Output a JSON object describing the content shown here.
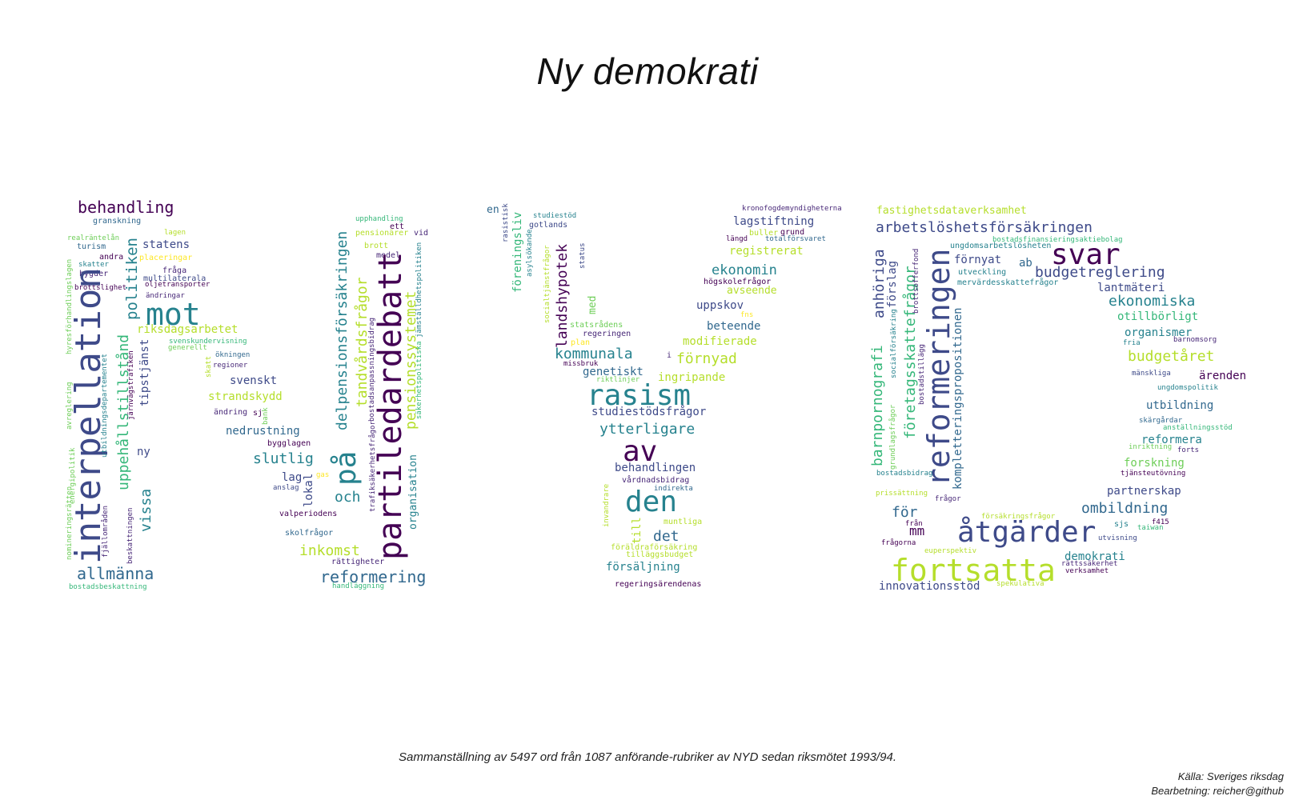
{
  "title": "Ny demokrati",
  "caption": "Sammanställning av 5497 ord från 1087 anförande-rubriker av NYD sedan riksmötet 1993/94.",
  "source_line1": "Källa: Sveriges riksdag",
  "source_line2": "Bearbetning: reicher@github",
  "words": [
    [
      "behandling",
      "#440154"
    ],
    [
      "granskning",
      "#31688e"
    ],
    [
      "lagen",
      "#b5de2b"
    ],
    [
      "realräntelån",
      "#6ece58"
    ],
    [
      "turism",
      "#31688e"
    ],
    [
      "statens",
      "#3e4a89"
    ],
    [
      "andra",
      "#440154"
    ],
    [
      "placeringar",
      "#fde725"
    ],
    [
      "skatter",
      "#26828e"
    ],
    [
      "fråga",
      "#482878"
    ],
    [
      "bygder",
      "#482878"
    ],
    [
      "multilaterala",
      "#3e4a89"
    ],
    [
      "oljetransporter",
      "#440154"
    ],
    [
      "brottslighet",
      "#440154"
    ],
    [
      "ändringar",
      "#482878"
    ],
    [
      "mot",
      "#26828e"
    ],
    [
      "riksdagsarbetet",
      "#b5de2b"
    ],
    [
      "svenskundervisning",
      "#35b779"
    ],
    [
      "generellt",
      "#6ece58"
    ],
    [
      "ökningen",
      "#31688e"
    ],
    [
      "regioner",
      "#482878"
    ],
    [
      "svenskt",
      "#3e4a89"
    ],
    [
      "strandskydd",
      "#b5de2b"
    ],
    [
      "ändring",
      "#482878"
    ],
    [
      "sj",
      "#440154"
    ],
    [
      "nedrustning",
      "#31688e"
    ],
    [
      "slutlig",
      "#26828e"
    ],
    [
      "bygglagen",
      "#440154"
    ],
    [
      "lag",
      "#3e4a89"
    ],
    [
      "anslag",
      "#3e4a89"
    ],
    [
      "gas",
      "#fde725"
    ],
    [
      "valperiodens",
      "#440154"
    ],
    [
      "och",
      "#26828e"
    ],
    [
      "skolfrågor",
      "#31688e"
    ],
    [
      "inkomst",
      "#b5de2b"
    ],
    [
      "rättigheter",
      "#482878"
    ],
    [
      "reformering",
      "#31688e"
    ],
    [
      "handläggning",
      "#35b779"
    ],
    [
      "allmänna",
      "#31688e"
    ],
    [
      "bostadsbeskattning",
      "#35b779"
    ],
    [
      "ny",
      "#3e4a89"
    ],
    [
      "upphandling",
      "#35b779"
    ],
    [
      "ett",
      "#440154"
    ],
    [
      "pensionärer",
      "#b5de2b"
    ],
    [
      "vid",
      "#482878"
    ],
    [
      "brott",
      "#b5de2b"
    ],
    [
      "medel",
      "#482878"
    ],
    [
      "en",
      "#31688e"
    ],
    [
      "studiestöd",
      "#26828e"
    ],
    [
      "gotlands",
      "#3e4a89"
    ],
    [
      "kronofogdemyndigheterna",
      "#482878"
    ],
    [
      "lagstiftning",
      "#3e4a89"
    ],
    [
      "buller",
      "#b5de2b"
    ],
    [
      "grund",
      "#440154"
    ],
    [
      "längd",
      "#440154"
    ],
    [
      "totalförsvaret",
      "#31688e"
    ],
    [
      "registrerat",
      "#b5de2b"
    ],
    [
      "ekonomin",
      "#26828e"
    ],
    [
      "högskolefrågor",
      "#440154"
    ],
    [
      "avseende",
      "#b5de2b"
    ],
    [
      "uppskov",
      "#3e4a89"
    ],
    [
      "fns",
      "#fde725"
    ],
    [
      "beteende",
      "#31688e"
    ],
    [
      "statsrådens",
      "#6ece58"
    ],
    [
      "regeringen",
      "#482878"
    ],
    [
      "plan",
      "#fde725"
    ],
    [
      "modifierade",
      "#b5de2b"
    ],
    [
      "kommunala",
      "#26828e"
    ],
    [
      "i",
      "#482878"
    ],
    [
      "förnyad",
      "#b5de2b"
    ],
    [
      "missbruk",
      "#440154"
    ],
    [
      "genetiskt",
      "#31688e"
    ],
    [
      "riktlinjer",
      "#6ece58"
    ],
    [
      "ingripande",
      "#b5de2b"
    ],
    [
      "rasism",
      "#26828e"
    ],
    [
      "studiestödsfrågor",
      "#3e4a89"
    ],
    [
      "ytterligare",
      "#26828e"
    ],
    [
      "av",
      "#440154"
    ],
    [
      "behandlingen",
      "#3e4a89"
    ],
    [
      "vårdnadsbidrag",
      "#482878"
    ],
    [
      "indirekta",
      "#31688e"
    ],
    [
      "den",
      "#26828e"
    ],
    [
      "muntliga",
      "#b5de2b"
    ],
    [
      "det",
      "#31688e"
    ],
    [
      "föräldraförsäkring",
      "#b5de2b"
    ],
    [
      "tilläggsbudget",
      "#b5de2b"
    ],
    [
      "försäljning",
      "#26828e"
    ],
    [
      "regeringsärendenas",
      "#440154"
    ],
    [
      "fastighetsdataverksamhet",
      "#b5de2b"
    ],
    [
      "arbetslöshetsförsäkringen",
      "#3e4a89"
    ],
    [
      "ungdomsarbetslösheten",
      "#26828e"
    ],
    [
      "bostadsfinansieringsaktiebolag",
      "#35b779"
    ],
    [
      "svar",
      "#440154"
    ],
    [
      "förnyat",
      "#3e4a89"
    ],
    [
      "ab",
      "#31688e"
    ],
    [
      "utveckling",
      "#26828e"
    ],
    [
      "budgetreglering",
      "#3e4a89"
    ],
    [
      "mervärdesskattefrågor",
      "#26828e"
    ],
    [
      "lantmäteri",
      "#3e4a89"
    ],
    [
      "ekonomiska",
      "#26828e"
    ],
    [
      "otillbörligt",
      "#35b779"
    ],
    [
      "organismer",
      "#26828e"
    ],
    [
      "fria",
      "#26828e"
    ],
    [
      "barnomsorg",
      "#482878"
    ],
    [
      "budgetåret",
      "#b5de2b"
    ],
    [
      "mänskliga",
      "#3e4a89"
    ],
    [
      "ärenden",
      "#440154"
    ],
    [
      "ungdomspolitik",
      "#26828e"
    ],
    [
      "utbildning",
      "#31688e"
    ],
    [
      "skärgårdar",
      "#31688e"
    ],
    [
      "anställningsstöd",
      "#35b779"
    ],
    [
      "reformera",
      "#26828e"
    ],
    [
      "inriktning",
      "#6ece58"
    ],
    [
      "forts",
      "#482878"
    ],
    [
      "forskning",
      "#6ece58"
    ],
    [
      "tjänsteutövning",
      "#440154"
    ],
    [
      "partnerskap",
      "#3e4a89"
    ],
    [
      "ombildning",
      "#31688e"
    ],
    [
      "f415",
      "#440154"
    ],
    [
      "sjs",
      "#26828e"
    ],
    [
      "taiwan",
      "#35b779"
    ],
    [
      "utvisning",
      "#3e4a89"
    ],
    [
      "åtgärder",
      "#3e4a89"
    ],
    [
      "för",
      "#31688e"
    ],
    [
      "mm",
      "#440154"
    ],
    [
      "från",
      "#440154"
    ],
    [
      "frågorna",
      "#440154"
    ],
    [
      "försäkringsfrågor",
      "#b5de2b"
    ],
    [
      "fortsatta",
      "#b5de2b"
    ],
    [
      "euperspektiv",
      "#b5de2b"
    ],
    [
      "demokrati",
      "#26828e"
    ],
    [
      "rättssäkerhet",
      "#482878"
    ],
    [
      "verksamhet",
      "#440154"
    ],
    [
      "innovationsstöd",
      "#3e4a89"
    ],
    [
      "spekulativa",
      "#b5de2b"
    ],
    [
      "prissättning",
      "#b5de2b"
    ],
    [
      "frågor",
      "#482878"
    ],
    [
      "bostadsbidrag",
      "#26828e"
    ],
    [
      "interpellation",
      "#3e4a89"
    ],
    [
      "uppehållstillstånd",
      "#35b779"
    ],
    [
      "politiken",
      "#26828e"
    ],
    [
      "tipstjänst",
      "#3e4a89"
    ],
    [
      "vissa",
      "#26828e"
    ],
    [
      "utbildningsdepartementet",
      "#26828e"
    ],
    [
      "järnvägstrafiken",
      "#440154"
    ],
    [
      "beskattningen",
      "#482878"
    ],
    [
      "fjällområden",
      "#482878"
    ],
    [
      "hyresförhandlingslagen",
      "#6ece58"
    ],
    [
      "avreglering",
      "#6ece58"
    ],
    [
      "energipolitik",
      "#6ece58"
    ],
    [
      "nomineringsrätten",
      "#6ece58"
    ],
    [
      "skatt",
      "#b5de2b"
    ],
    [
      "bank",
      "#6ece58"
    ],
    [
      "lokal",
      "#3e4a89"
    ],
    [
      "delpensionsförsäkringen",
      "#26828e"
    ],
    [
      "tandvårdsfrågor",
      "#b5de2b"
    ],
    [
      "på",
      "#26828e"
    ],
    [
      "partiledardebatt",
      "#440154"
    ],
    [
      "pensionssystemet",
      "#b5de2b"
    ],
    [
      "organisation",
      "#26828e"
    ],
    [
      "trafiksäkerhetsfrågor",
      "#482878"
    ],
    [
      "bostadsanpassningsbidrag",
      "#482878"
    ],
    [
      "jämställdhetspolitiken",
      "#26828e"
    ],
    [
      "säkerhetspolitiska",
      "#35b779"
    ],
    [
      "föreningsliv",
      "#35b779"
    ],
    [
      "rasistisk",
      "#3e4a89"
    ],
    [
      "asylsökande",
      "#26828e"
    ],
    [
      "socialtjänstfrågor",
      "#b5de2b"
    ],
    [
      "landshypotek",
      "#440154"
    ],
    [
      "status",
      "#3e4a89"
    ],
    [
      "med",
      "#6ece58"
    ],
    [
      "invandrare",
      "#b5de2b"
    ],
    [
      "till",
      "#b5de2b"
    ],
    [
      "barnpornografi",
      "#35b779"
    ],
    [
      "anhöriga",
      "#3e4a89"
    ],
    [
      "grundlagsfrågor",
      "#6ece58"
    ],
    [
      "företagsskattefrågor",
      "#35b779"
    ],
    [
      "förslag",
      "#3e4a89"
    ],
    [
      "socialförsäkring",
      "#26828e"
    ],
    [
      "reformeringen",
      "#3e4a89"
    ],
    [
      "bostadstillägg",
      "#482878"
    ],
    [
      "brottsofferfond",
      "#482878"
    ],
    [
      "kompletteringspropositionen",
      "#31688e"
    ]
  ]
}
